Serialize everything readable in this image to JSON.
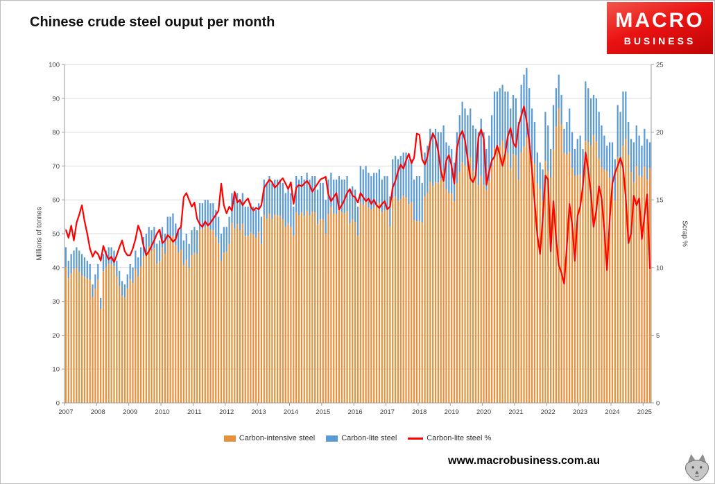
{
  "header": {
    "title": "Chinese crude steel ouput per month"
  },
  "logo": {
    "line1": "MACRO",
    "line2": "BUSINESS",
    "bg_color": "#e01212"
  },
  "footer": {
    "website": "www.macrobusiness.com.au"
  },
  "chart_data": {
    "type": "bar",
    "subtype": "stacked-monthly-bars-with-line-overlay",
    "title": "Chinese crude steel ouput per month",
    "ylabel_left": "Millions of tonnes",
    "ylabel_right": "Scrap %",
    "left_axis": {
      "min": 0,
      "max": 100,
      "ticks": [
        0,
        10,
        20,
        30,
        40,
        50,
        60,
        70,
        80,
        90,
        100
      ]
    },
    "right_axis": {
      "min": 0,
      "max": 25,
      "ticks": [
        0,
        5,
        10,
        15,
        20,
        25
      ]
    },
    "x_tick_labels": [
      "2007",
      "2008",
      "2009",
      "2010",
      "2011",
      "2012",
      "2013",
      "2014",
      "2015",
      "2016",
      "2017",
      "2018",
      "2019",
      "2020",
      "2021",
      "2022",
      "2023",
      "2024",
      "2025"
    ],
    "legend": [
      {
        "label": "Carbon-intensive steel",
        "color": "#E8913D",
        "type": "bar"
      },
      {
        "label": "Carbon-lite steel",
        "color": "#5B9BD5",
        "type": "bar"
      },
      {
        "label": "Carbon-lite steel %",
        "color": "#FF0000",
        "type": "line"
      }
    ],
    "series": [
      {
        "name": "Carbon-intensive steel",
        "axis": "left",
        "values_from": "total_by_year minus carbon-lite share"
      },
      {
        "name": "Carbon-lite steel",
        "axis": "left",
        "values_from": "total_by_year times scrap_pct_by_year / 100"
      },
      {
        "name": "Carbon-lite steel %",
        "axis": "right",
        "values_from": "scrap_pct_by_year"
      }
    ],
    "total_by_year": {
      "2007": [
        46,
        42,
        44,
        45,
        46,
        45,
        44,
        43,
        42,
        41,
        35,
        38
      ],
      "2008": [
        41,
        31,
        44,
        45,
        46,
        46,
        45,
        42,
        39,
        36,
        35,
        38
      ],
      "2009": [
        41,
        40,
        45,
        43,
        46,
        49,
        50,
        52,
        51,
        52,
        47,
        48
      ],
      "2010": [
        52,
        50,
        55,
        55,
        56,
        53,
        51,
        52,
        48,
        50,
        47,
        51
      ],
      "2011": [
        52,
        51,
        59,
        59,
        60,
        60,
        59,
        59,
        57,
        55,
        50,
        52
      ],
      "2012": [
        52,
        55,
        62,
        61,
        62,
        60,
        62,
        58,
        58,
        59,
        58,
        57
      ],
      "2013": [
        59,
        55,
        66,
        65,
        67,
        65,
        66,
        66,
        66,
        65,
        62,
        63
      ],
      "2014": [
        62,
        58,
        67,
        66,
        67,
        66,
        68,
        66,
        67,
        67,
        63,
        65
      ],
      "2015": [
        65,
        60,
        66,
        68,
        66,
        66,
        67,
        66,
        66,
        67,
        63,
        64
      ],
      "2016": [
        63,
        58,
        70,
        69,
        70,
        68,
        67,
        68,
        68,
        69,
        66,
        67
      ],
      "2017": [
        67,
        61,
        72,
        73,
        72,
        73,
        74,
        74,
        72,
        72,
        66,
        67
      ],
      "2018": [
        67,
        65,
        74,
        76,
        81,
        80,
        81,
        80,
        80,
        82,
        77,
        76
      ],
      "2019": [
        75,
        71,
        80,
        85,
        89,
        87,
        85,
        87,
        82,
        81,
        80,
        84
      ],
      "2020": [
        80,
        75,
        79,
        85,
        92,
        92,
        93,
        94,
        92,
        92,
        87,
        91
      ],
      "2021": [
        90,
        83,
        94,
        97,
        99,
        93,
        87,
        83,
        74,
        71,
        69,
        86
      ],
      "2022": [
        82,
        75,
        88,
        93,
        97,
        91,
        81,
        83,
        87,
        80,
        75,
        78
      ],
      "2023": [
        79,
        75,
        95,
        93,
        90,
        91,
        90,
        86,
        82,
        79,
        76,
        77
      ],
      "2024": [
        77,
        72,
        88,
        86,
        92,
        92,
        83,
        78,
        77,
        82,
        79,
        76
      ],
      "2025": [
        81,
        78,
        77
      ]
    },
    "scrap_pct_by_year": {
      "2007": [
        12.8,
        12.2,
        13.1,
        12.0,
        13.3,
        13.9,
        14.6,
        13.4,
        12.5,
        11.4,
        10.8,
        11.2
      ],
      "2008": [
        11.0,
        10.5,
        11.6,
        11.0,
        10.6,
        10.8,
        10.4,
        10.9,
        11.5,
        12.0,
        11.2,
        10.9
      ],
      "2009": [
        10.9,
        11.4,
        12.1,
        13.1,
        12.6,
        11.6,
        10.9,
        11.2,
        11.6,
        12.0,
        12.5,
        12.8
      ],
      "2010": [
        11.8,
        12.0,
        12.4,
        12.2,
        11.9,
        12.1,
        12.8,
        13.0,
        15.2,
        15.5,
        15.0,
        14.5
      ],
      "2011": [
        14.8,
        13.6,
        13.2,
        13.0,
        13.4,
        13.1,
        13.3,
        13.6,
        13.9,
        14.2,
        16.2,
        14.6
      ],
      "2012": [
        14.0,
        14.5,
        14.2,
        15.6,
        14.8,
        15.0,
        14.6,
        14.9,
        15.1,
        14.5,
        14.2,
        14.4
      ],
      "2013": [
        14.3,
        14.6,
        15.9,
        16.2,
        16.5,
        16.3,
        15.9,
        16.1,
        16.4,
        16.6,
        16.2,
        15.8
      ],
      "2014": [
        16.3,
        14.7,
        15.9,
        16.1,
        16.0,
        16.2,
        16.4,
        16.1,
        15.6,
        15.9,
        16.2,
        16.5
      ],
      "2015": [
        16.6,
        16.7,
        15.4,
        14.9,
        15.2,
        15.5,
        14.3,
        14.6,
        15.0,
        15.5,
        15.8,
        15.3
      ],
      "2016": [
        15.2,
        14.8,
        15.5,
        15.2,
        14.9,
        15.1,
        14.7,
        15.0,
        14.6,
        14.4,
        14.7,
        14.9
      ],
      "2017": [
        14.3,
        14.5,
        15.9,
        16.4,
        17.1,
        17.6,
        17.3,
        17.9,
        18.4,
        17.7,
        18.1,
        19.9
      ],
      "2018": [
        19.8,
        18.0,
        17.6,
        18.2,
        19.3,
        19.9,
        19.5,
        18.6,
        17.1,
        16.4,
        17.9,
        18.3
      ],
      "2019": [
        17.5,
        16.2,
        18.8,
        19.7,
        20.1,
        19.4,
        18.0,
        16.6,
        16.3,
        16.8,
        19.6,
        20.2
      ],
      "2020": [
        19.5,
        16.1,
        17.1,
        17.9,
        18.2,
        19.0,
        18.3,
        17.5,
        18.4,
        19.7,
        20.3,
        19.2
      ],
      "2021": [
        18.9,
        20.5,
        21.2,
        21.9,
        20.8,
        19.3,
        17.2,
        14.8,
        12.4,
        11.0,
        13.5,
        16.8
      ],
      "2022": [
        16.5,
        11.2,
        14.9,
        12.1,
        10.2,
        9.6,
        8.8,
        11.5,
        14.7,
        13.2,
        10.5,
        13.8
      ],
      "2023": [
        14.5,
        16.0,
        18.5,
        17.2,
        15.5,
        13.0,
        14.2,
        16.0,
        15.1,
        12.8,
        9.8,
        13.5
      ],
      "2024": [
        16.2,
        17.0,
        17.5,
        18.1,
        17.4,
        15.2,
        11.8,
        12.5,
        15.3,
        14.6,
        15.1,
        12.1
      ],
      "2025": [
        13.8,
        15.4,
        9.9
      ]
    }
  }
}
